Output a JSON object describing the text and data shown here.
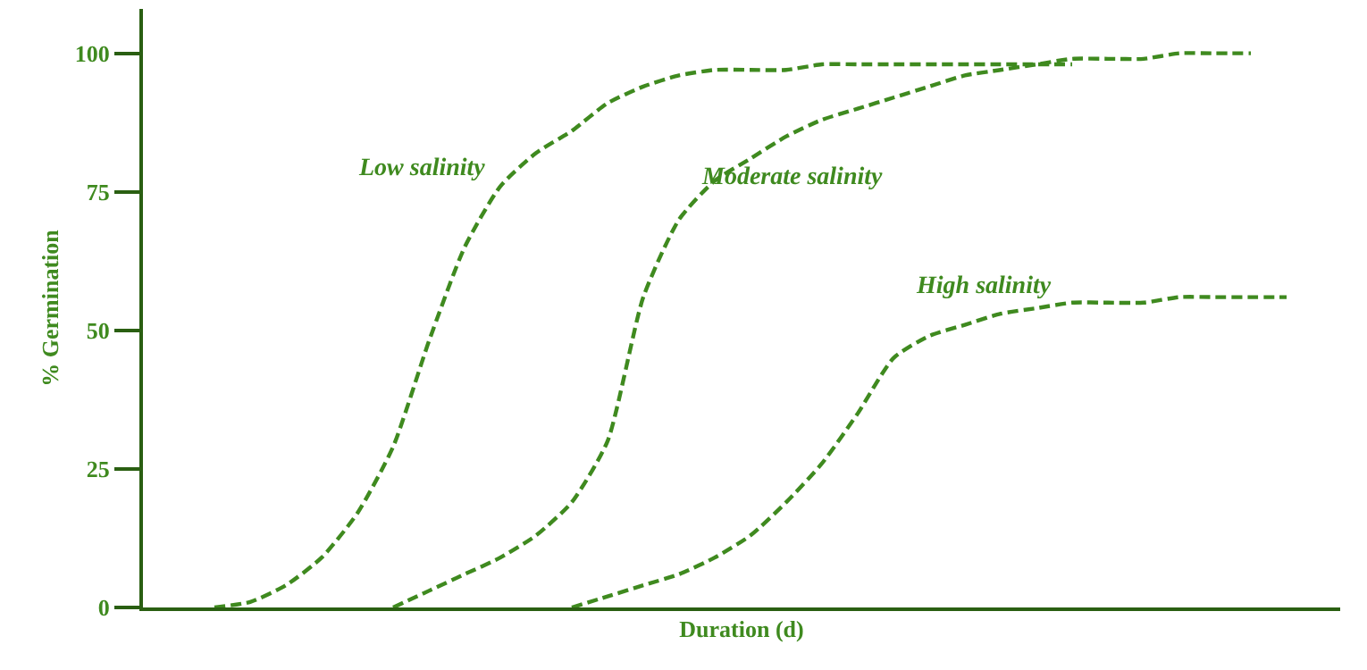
{
  "chart_data": {
    "type": "line",
    "xlabel": "Duration (d)",
    "ylabel": "% Germination",
    "categories": [
      null,
      null,
      null,
      null,
      null,
      null,
      null,
      null,
      null,
      null,
      null,
      null,
      null,
      null,
      null,
      null,
      null,
      null,
      null,
      null,
      null,
      null,
      null,
      null,
      null,
      null,
      null,
      null,
      null,
      null,
      null,
      null,
      null,
      null
    ],
    "series": [
      {
        "name": "Low salinity",
        "color": "#3f8a1f",
        "values": [
          null,
          null,
          0,
          1,
          4,
          9,
          17,
          29,
          48,
          65,
          76,
          82,
          86,
          91,
          94,
          96,
          97,
          97,
          97,
          98,
          98,
          98,
          98,
          98,
          98,
          98,
          98,
          null,
          null,
          null,
          null,
          null,
          null,
          null
        ]
      },
      {
        "name": "Moderate salinity",
        "color": "#3f8a1f",
        "values": [
          null,
          null,
          null,
          null,
          null,
          null,
          null,
          0,
          3,
          6,
          9,
          13,
          19,
          30,
          56,
          70,
          77,
          81,
          85,
          88,
          90,
          92,
          94,
          96,
          97,
          98,
          99,
          99,
          99,
          100,
          100,
          100,
          null,
          null
        ]
      },
      {
        "name": "High salinity",
        "color": "#3f8a1f",
        "values": [
          null,
          null,
          null,
          null,
          null,
          null,
          null,
          null,
          null,
          null,
          null,
          null,
          0,
          2,
          4,
          6,
          9,
          13,
          19,
          26,
          35,
          45,
          49,
          51,
          53,
          54,
          55,
          55,
          55,
          56,
          56,
          56,
          56,
          null
        ]
      }
    ],
    "ylim": [
      0,
      108
    ],
    "yticks": [
      0,
      25,
      50,
      75,
      100
    ],
    "grid": false,
    "legend": false,
    "marker": "none",
    "line_style": "dashed"
  }
}
